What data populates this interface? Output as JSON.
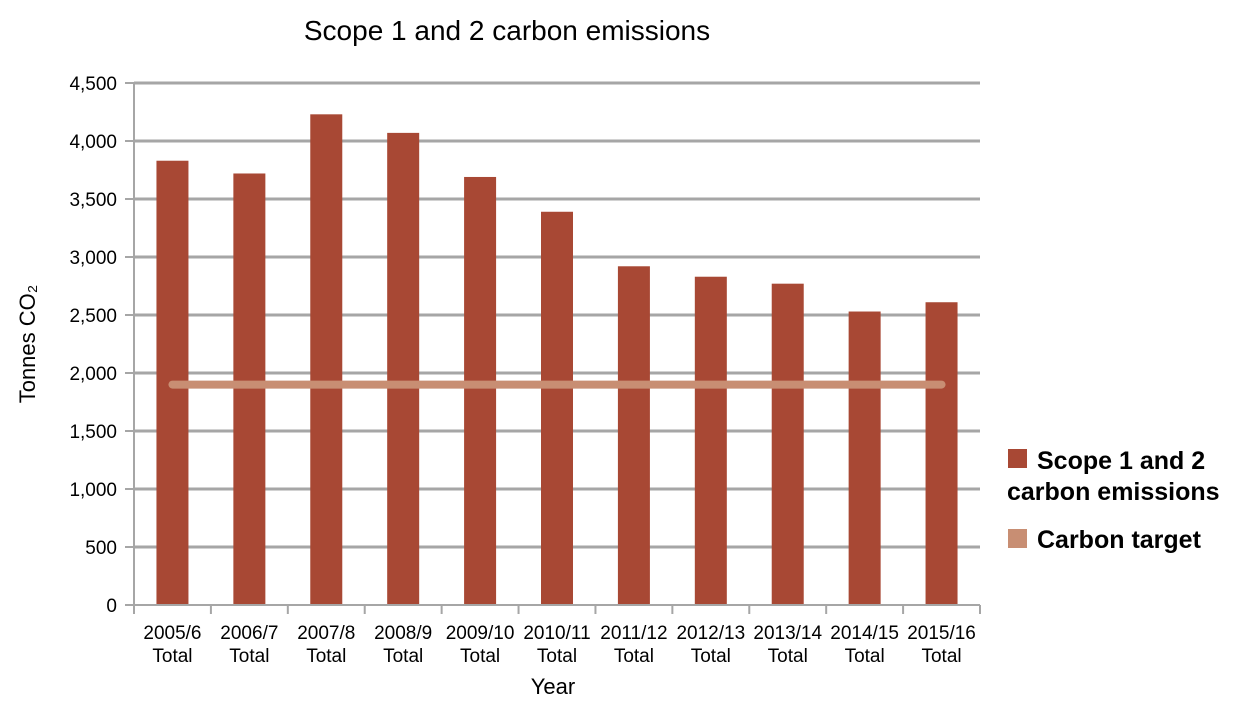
{
  "chart_data": {
    "type": "bar",
    "title": "Scope 1 and 2 carbon emissions",
    "xlabel": "Year",
    "ylabel": "Tonnes CO₂",
    "categories": [
      [
        "2005/6",
        "Total"
      ],
      [
        "2006/7",
        "Total"
      ],
      [
        "2007/8",
        "Total"
      ],
      [
        "2008/9",
        "Total"
      ],
      [
        "2009/10",
        "Total"
      ],
      [
        "2010/11",
        "Total"
      ],
      [
        "2011/12",
        "Total"
      ],
      [
        "2012/13",
        "Total"
      ],
      [
        "2013/14",
        "Total"
      ],
      [
        "2014/15",
        "Total"
      ],
      [
        "2015/16",
        "Total"
      ]
    ],
    "series": [
      {
        "name": "Scope 1 and 2 carbon emissions",
        "type": "bar",
        "color": "#A84834",
        "values": [
          3830,
          3720,
          4230,
          4070,
          3690,
          3390,
          2920,
          2830,
          2770,
          2530,
          2610
        ]
      },
      {
        "name": "Carbon target",
        "type": "line",
        "color": "#C88E73",
        "values": [
          1900,
          1900,
          1900,
          1900,
          1900,
          1900,
          1900,
          1900,
          1900,
          1900,
          1900
        ]
      }
    ],
    "ylim": [
      0,
      4500
    ],
    "yticks": [
      "0",
      "500",
      "1,000",
      "1,500",
      "2,000",
      "2,500",
      "3,000",
      "3,500",
      "4,000",
      "4,500"
    ],
    "grid": true,
    "legend_position": "right"
  }
}
